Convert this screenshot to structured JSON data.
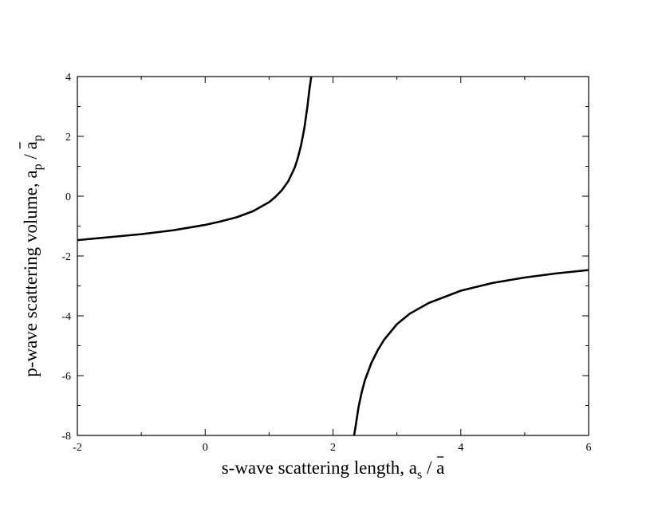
{
  "chart_data": {
    "type": "line",
    "xlabel": "s-wave scattering length, a_s / ā",
    "ylabel": "p-wave scattering volume, a_p / ā_p",
    "xlim": [
      -2,
      6
    ],
    "ylim": [
      -8,
      4
    ],
    "x_major_ticks": [
      -2,
      0,
      2,
      4,
      6
    ],
    "x_minor_ticks": [
      -1,
      1,
      3,
      5
    ],
    "y_major_ticks": [
      -8,
      -6,
      -4,
      -2,
      0,
      2,
      4
    ],
    "y_minor_ticks": [
      -7,
      -5,
      -3,
      -1,
      1,
      3
    ],
    "x_tick_labels": [
      "-2",
      "0",
      "2",
      "4",
      "6"
    ],
    "y_tick_labels": [
      "-8",
      "-6",
      "-4",
      "-2",
      "0",
      "2",
      "4"
    ],
    "grid": false,
    "series": [
      {
        "color": "#000000",
        "x": [
          -2.0,
          -1.5,
          -1.0,
          -0.5,
          0.0,
          0.25,
          0.5,
          0.75,
          1.0,
          1.1,
          1.2,
          1.3,
          1.4,
          1.45,
          1.5,
          1.55,
          1.6,
          1.63,
          1.66
        ],
        "y": [
          -1.47,
          -1.37,
          -1.27,
          -1.14,
          -0.96,
          -0.84,
          -0.7,
          -0.5,
          -0.2,
          -0.02,
          0.2,
          0.5,
          0.95,
          1.28,
          1.7,
          2.25,
          3.0,
          3.55,
          4.0
        ],
        "segment": "left-branch"
      },
      {
        "color": "#000000",
        "x": [
          2.33,
          2.35,
          2.4,
          2.45,
          2.5,
          2.6,
          2.7,
          2.8,
          3.0,
          3.2,
          3.5,
          4.0,
          4.5,
          5.0,
          5.5,
          6.0
        ],
        "y": [
          -8.0,
          -7.75,
          -7.05,
          -6.55,
          -6.15,
          -5.58,
          -5.15,
          -4.8,
          -4.28,
          -3.93,
          -3.57,
          -3.16,
          -2.9,
          -2.72,
          -2.58,
          -2.47
        ],
        "segment": "right-branch"
      }
    ]
  }
}
